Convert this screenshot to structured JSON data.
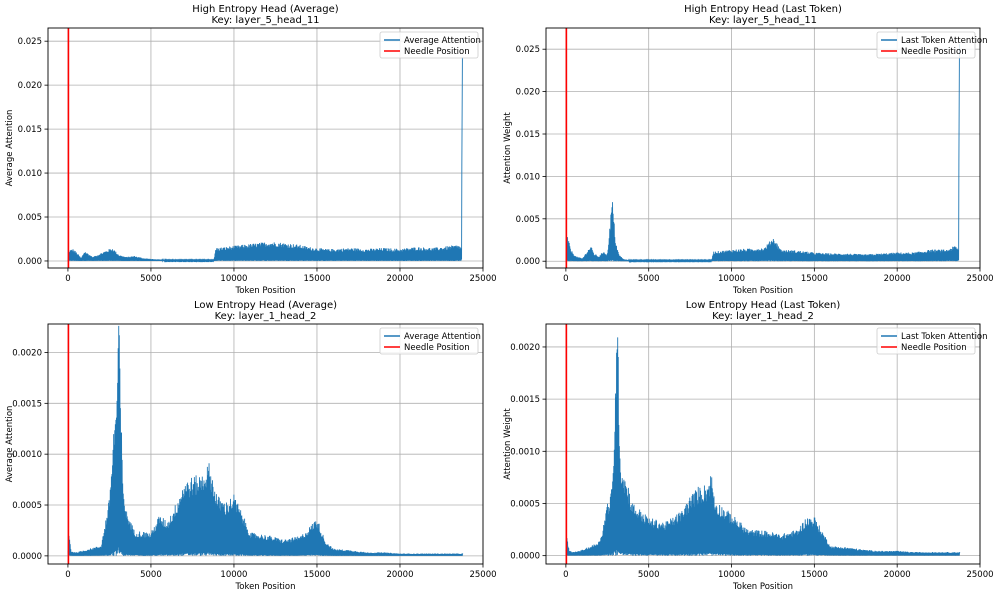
{
  "chart_data": [
    {
      "type": "line",
      "title": "High Entropy Head (Average)",
      "subtitle": "Key: layer_5_head_11",
      "xlabel": "Token Position",
      "ylabel": "Average Attention",
      "xlim": [
        -1200,
        25000
      ],
      "ylim": [
        -0.0008,
        0.0265
      ],
      "xticks": [
        0,
        5000,
        10000,
        15000,
        20000,
        25000
      ],
      "yticks": [
        0.0,
        0.005,
        0.01,
        0.015,
        0.02,
        0.025
      ],
      "ytick_labels": [
        "0.000",
        "0.005",
        "0.010",
        "0.015",
        "0.020",
        "0.025"
      ],
      "grid": true,
      "legend_position": "top-right",
      "needle_position": 30,
      "series": [
        {
          "name": "Average Attention",
          "color": "#1f77b4",
          "x": [
            0,
            80,
            300,
            500,
            800,
            1000,
            1500,
            2000,
            2500,
            2700,
            2900,
            3100,
            3500,
            4000,
            4500,
            5000,
            6000,
            7000,
            8000,
            8800,
            8900,
            9500,
            10000,
            10500,
            11000,
            11500,
            12000,
            12500,
            13000,
            13500,
            14000,
            14500,
            15000,
            15500,
            16000,
            17000,
            18000,
            19000,
            20000,
            21000,
            22000,
            23000,
            23500,
            23700,
            23760
          ],
          "y": [
            0.0001,
            0.0011,
            0.0012,
            0.0009,
            0.0003,
            0.001,
            0.0004,
            0.0008,
            0.0012,
            0.0013,
            0.0009,
            0.0006,
            0.0004,
            0.0005,
            0.0003,
            0.0002,
            0.0001,
            0.0001,
            0.0001,
            0.0001,
            0.0013,
            0.0014,
            0.0015,
            0.0016,
            0.0017,
            0.0018,
            0.0019,
            0.0019,
            0.0018,
            0.0017,
            0.0016,
            0.0014,
            0.0013,
            0.0012,
            0.0012,
            0.0013,
            0.0012,
            0.0013,
            0.0012,
            0.0014,
            0.0013,
            0.0015,
            0.0016,
            0.0014,
            0.0232
          ]
        }
      ]
    },
    {
      "type": "line",
      "title": "High Entropy Head (Last Token)",
      "subtitle": "Key: layer_5_head_11",
      "xlabel": "Token Position",
      "ylabel": "Attention Weight",
      "xlim": [
        -1200,
        25000
      ],
      "ylim": [
        -0.0008,
        0.0275
      ],
      "xticks": [
        0,
        5000,
        10000,
        15000,
        20000,
        25000
      ],
      "yticks": [
        0.0,
        0.005,
        0.01,
        0.015,
        0.02,
        0.025
      ],
      "ytick_labels": [
        "0.000",
        "0.005",
        "0.010",
        "0.015",
        "0.020",
        "0.025"
      ],
      "grid": true,
      "legend_position": "top-right",
      "needle_position": 30,
      "series": [
        {
          "name": "Last Token Attention",
          "color": "#1f77b4",
          "x": [
            0,
            100,
            300,
            600,
            1000,
            1500,
            1700,
            2000,
            2300,
            2500,
            2800,
            3000,
            3200,
            3500,
            4000,
            5000,
            6000,
            7000,
            8800,
            8900,
            9500,
            10000,
            11000,
            12000,
            12500,
            13000,
            14000,
            15000,
            16000,
            17000,
            18000,
            19000,
            20000,
            21000,
            22000,
            23000,
            23500,
            23700,
            23760
          ],
          "y": [
            0.0001,
            0.0026,
            0.0012,
            0.0005,
            0.0003,
            0.0016,
            0.0008,
            0.0005,
            0.0011,
            0.0006,
            0.0066,
            0.0021,
            0.0007,
            0.0002,
            0.0001,
            0.0001,
            0.0001,
            0.0001,
            0.0001,
            0.001,
            0.0011,
            0.0012,
            0.0013,
            0.0014,
            0.0025,
            0.0012,
            0.0011,
            0.0009,
            0.0008,
            0.0008,
            0.0007,
            0.0008,
            0.0009,
            0.0009,
            0.0012,
            0.0012,
            0.0016,
            0.0013,
            0.0256
          ]
        }
      ]
    },
    {
      "type": "line",
      "title": "Low Entropy Head (Average)",
      "subtitle": "Key: layer_1_head_2",
      "xlabel": "Token Position",
      "ylabel": "Average Attention",
      "xlim": [
        -1200,
        25000
      ],
      "ylim": [
        -8e-05,
        0.00228
      ],
      "xticks": [
        0,
        5000,
        10000,
        15000,
        20000,
        25000
      ],
      "yticks": [
        0.0,
        0.0005,
        0.001,
        0.0015,
        0.002
      ],
      "ytick_labels": [
        "0.0000",
        "0.0005",
        "0.0010",
        "0.0015",
        "0.0020"
      ],
      "grid": true,
      "legend_position": "top-right",
      "needle_position": 30,
      "series": [
        {
          "name": "Average Attention",
          "color": "#1f77b4",
          "x": [
            0,
            60,
            200,
            500,
            1000,
            1500,
            2000,
            2200,
            2500,
            2800,
            2950,
            3050,
            3150,
            3300,
            3500,
            4000,
            5000,
            5500,
            6000,
            6500,
            7000,
            7500,
            8000,
            8500,
            9000,
            9500,
            10000,
            11000,
            12000,
            13000,
            14000,
            14500,
            15000,
            15500,
            16000,
            17000,
            18000,
            19000,
            20000,
            21000,
            22000,
            23000,
            23800
          ],
          "y": [
            5e-05,
            0.0002,
            4e-05,
            3e-05,
            5e-05,
            7e-05,
            9e-05,
            0.00025,
            0.0005,
            0.0012,
            0.0014,
            0.00217,
            0.00155,
            0.00065,
            0.0004,
            0.00022,
            0.0002,
            0.00035,
            0.0003,
            0.00045,
            0.00065,
            0.00068,
            0.0007,
            0.0008,
            0.00052,
            0.00046,
            0.00053,
            0.0002,
            0.00018,
            0.00014,
            0.00017,
            0.00024,
            0.00033,
            0.00013,
            6e-05,
            5e-05,
            3e-05,
            3e-05,
            2e-05,
            2e-05,
            2e-05,
            2e-05,
            2e-05
          ]
        }
      ]
    },
    {
      "type": "line",
      "title": "Low Entropy Head (Last Token)",
      "subtitle": "Key: layer_1_head_2",
      "xlabel": "Token Position",
      "ylabel": "Attention Weight",
      "xlim": [
        -1200,
        25000
      ],
      "ylim": [
        -8e-05,
        0.00222
      ],
      "xticks": [
        0,
        5000,
        10000,
        15000,
        20000,
        25000
      ],
      "yticks": [
        0.0,
        0.0005,
        0.001,
        0.0015,
        0.002
      ],
      "ytick_labels": [
        "0.0000",
        "0.0005",
        "0.0010",
        "0.0015",
        "0.0020"
      ],
      "grid": true,
      "legend_position": "top-right",
      "needle_position": 30,
      "series": [
        {
          "name": "Last Token Attention",
          "color": "#1f77b4",
          "x": [
            0,
            60,
            200,
            500,
            1000,
            1500,
            2000,
            2200,
            2500,
            2700,
            2850,
            3000,
            3100,
            3200,
            3300,
            3500,
            3800,
            4000,
            5000,
            6000,
            7000,
            7500,
            8000,
            8500,
            8800,
            9000,
            9500,
            10000,
            11000,
            12000,
            13000,
            14000,
            14500,
            15000,
            15500,
            16000,
            17000,
            18000,
            19000,
            20000,
            21000,
            22000,
            23000,
            23800
          ],
          "y": [
            5e-05,
            0.00016,
            4e-05,
            3e-05,
            5e-05,
            8e-05,
            0.00012,
            0.00021,
            0.00045,
            0.0005,
            0.0007,
            0.00155,
            0.00211,
            0.0014,
            0.0008,
            0.0007,
            0.00058,
            0.00045,
            0.00032,
            0.00028,
            0.00038,
            0.0005,
            0.00058,
            0.0006,
            0.0007,
            0.00047,
            0.00041,
            0.00035,
            0.00022,
            0.00021,
            0.00018,
            0.00022,
            0.00032,
            0.00033,
            0.0002,
            8e-05,
            7e-05,
            5e-05,
            4e-05,
            4e-05,
            3e-05,
            3e-05,
            3e-05,
            3e-05
          ]
        },
        {
          "name": "Needle Position",
          "color": "#ff0000",
          "x": [
            30,
            30
          ],
          "y": [
            -8e-05,
            0.00222
          ]
        }
      ]
    }
  ],
  "legend": {
    "needle_label": "Needle Position",
    "needle_color": "#ff0000"
  }
}
